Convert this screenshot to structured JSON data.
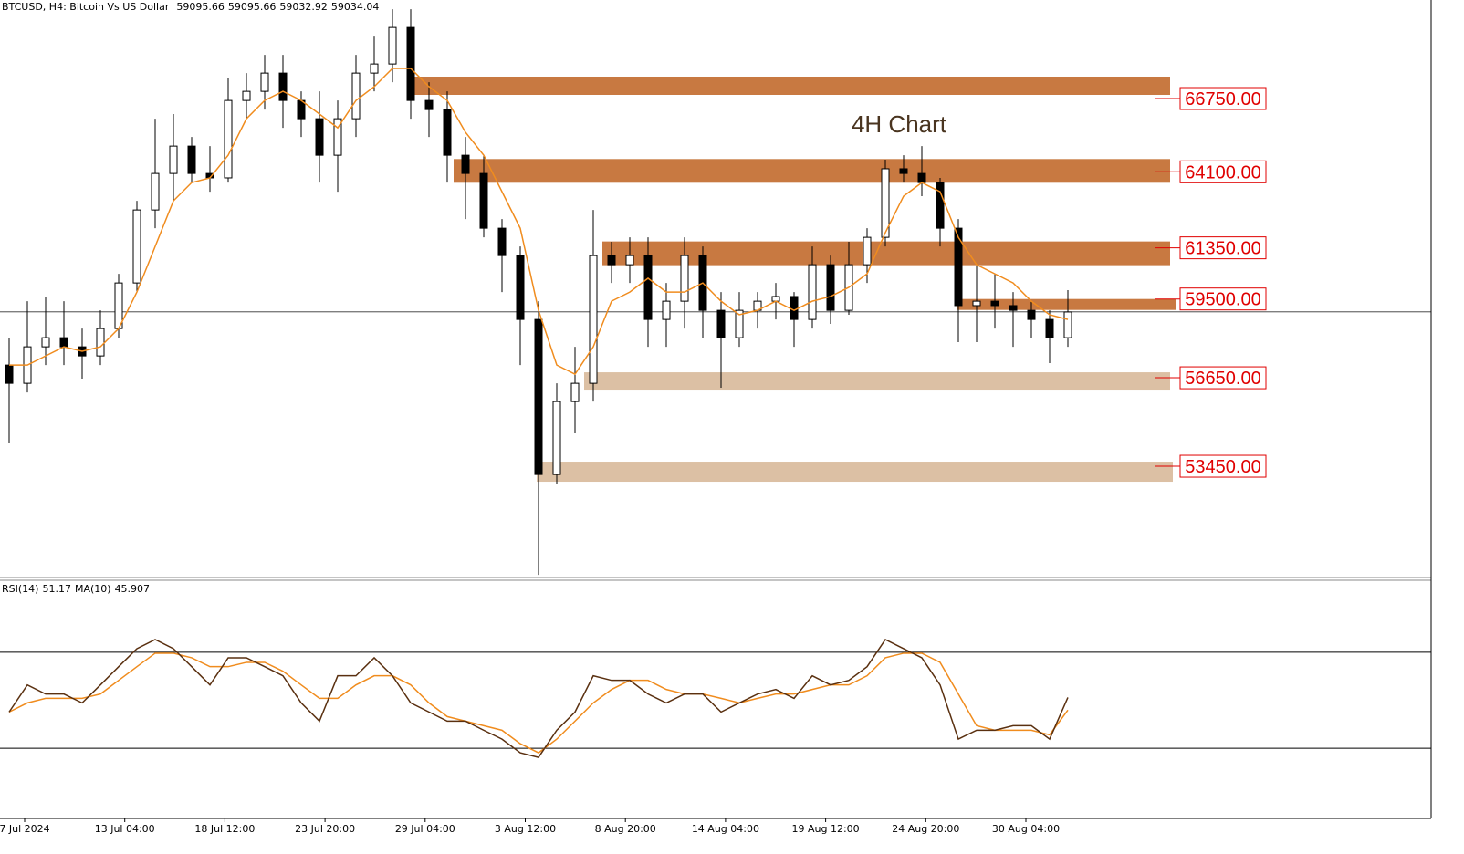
{
  "chart_data": {
    "type": "candlestick",
    "header": {
      "symbol": "BTCUSD, H4:  Bitcoin Vs US Dollar",
      "ohlc": [
        59095.66,
        59095.66,
        59032.92,
        59034.04
      ]
    },
    "annotation": "4H Chart",
    "ylim": [
      49425,
      70314
    ],
    "open": [
      57110,
      56450,
      57770,
      58100,
      57770,
      57440,
      58430,
      60080,
      62720,
      64040,
      65030,
      64040,
      63880,
      66680,
      67010,
      67670,
      66680,
      66020,
      64700,
      66020,
      67670,
      68000,
      69320,
      66680,
      66350,
      64700,
      64040,
      62060,
      61070,
      58760,
      53150,
      55790,
      56450,
      61070,
      60740,
      61070,
      58760,
      59420,
      61070,
      59090,
      58100,
      59090,
      59420,
      59590,
      58760,
      60740,
      59090,
      60740,
      61730,
      64210,
      64040,
      63710,
      62060,
      59260,
      59420,
      59260,
      59090,
      58760,
      58100
    ],
    "high": [
      58100,
      59420,
      59590,
      59420,
      58430,
      59090,
      60410,
      63050,
      66020,
      66190,
      65360,
      65030,
      67510,
      67670,
      68330,
      68330,
      67010,
      67010,
      66680,
      68330,
      68990,
      69980,
      69980,
      67340,
      67010,
      65360,
      64700,
      62390,
      61400,
      59420,
      56450,
      57770,
      62720,
      61570,
      61730,
      61730,
      60080,
      61730,
      61400,
      59750,
      59750,
      59750,
      60080,
      59750,
      61400,
      61070,
      61570,
      62060,
      64540,
      64700,
      65030,
      63880,
      62390,
      60740,
      60410,
      59750,
      59420,
      59090,
      59820
    ],
    "low": [
      54310,
      56120,
      57110,
      57110,
      56620,
      57110,
      58100,
      59750,
      62060,
      63050,
      63710,
      63380,
      63710,
      66020,
      66350,
      65690,
      65360,
      63710,
      63380,
      65360,
      67010,
      67340,
      66020,
      65360,
      63710,
      62390,
      61730,
      59750,
      57110,
      49520,
      52820,
      54640,
      55790,
      60080,
      60080,
      57770,
      57770,
      58430,
      58100,
      56290,
      57770,
      58430,
      58760,
      57770,
      58430,
      58600,
      58930,
      60080,
      61400,
      63710,
      63220,
      61400,
      57940,
      57940,
      58430,
      57770,
      58100,
      57180,
      57770
    ],
    "close": [
      56450,
      57770,
      58100,
      57770,
      57440,
      58430,
      60080,
      62720,
      64040,
      65030,
      64040,
      63880,
      66680,
      67010,
      67670,
      66680,
      66020,
      64700,
      66020,
      67670,
      68000,
      69320,
      66680,
      66350,
      64700,
      64040,
      62060,
      61070,
      58760,
      53150,
      55790,
      56450,
      61070,
      60740,
      61070,
      58760,
      59420,
      61070,
      59090,
      58100,
      59090,
      59420,
      59590,
      58760,
      60740,
      59090,
      60740,
      61730,
      64210,
      64040,
      63710,
      62060,
      59260,
      59420,
      59260,
      59090,
      58760,
      58100,
      59030
    ],
    "ma": {
      "color": "#f08c1e",
      "values": [
        57110,
        57110,
        57440,
        57770,
        57610,
        57770,
        58430,
        59750,
        61400,
        63050,
        63710,
        63880,
        64700,
        66020,
        66680,
        67010,
        66680,
        66190,
        65690,
        66680,
        67180,
        67840,
        67840,
        67180,
        66680,
        65530,
        64700,
        63380,
        62060,
        59090,
        57110,
        56780,
        57770,
        59420,
        59750,
        60250,
        59750,
        59750,
        60080,
        59420,
        58930,
        59090,
        59420,
        59090,
        59420,
        59590,
        59920,
        60410,
        61900,
        63220,
        63710,
        63380,
        61730,
        60740,
        60410,
        60080,
        59420,
        58930,
        58760
      ]
    },
    "zones": [
      {
        "level": {
          "value": 66750,
          "label": "66750.00"
        },
        "top": 67542,
        "bottom": 66882,
        "color": "#c87941"
      },
      {
        "level": {
          "value": 64100,
          "label": "64100.00"
        },
        "top": 64562,
        "bottom": 63704,
        "color": "#c87941"
      },
      {
        "level": {
          "value": 61350,
          "label": "61350.00"
        },
        "top": 61581,
        "bottom": 60723,
        "color": "#c87941"
      },
      {
        "level": {
          "value": 59500,
          "label": "59500.00"
        },
        "top": 59500,
        "bottom": 59104,
        "color": "#c87941"
      },
      {
        "level": {
          "value": 56650,
          "label": "56650.00"
        },
        "top": 56848,
        "bottom": 56221,
        "color": "#dcc0a4"
      },
      {
        "level": {
          "value": 53450,
          "label": "53450.00"
        },
        "top": 53615,
        "bottom": 52889,
        "color": "#dcc0a4"
      }
    ],
    "rsi": {
      "name": "RSI(14)",
      "value": 51.17,
      "ma_name": "MA(10)",
      "ma_value": 45.907,
      "ylim": [
        0,
        100
      ],
      "levels": [
        30,
        70
      ],
      "color": "#5a3010",
      "ma_color": "#f08c1e",
      "values": [
        45.1,
        56.4,
        52.6,
        52.6,
        48.9,
        56.4,
        64.0,
        71.5,
        75.3,
        71.5,
        64.0,
        56.4,
        67.7,
        67.7,
        64.0,
        60.2,
        48.9,
        41.3,
        60.2,
        60.2,
        67.7,
        60.2,
        48.9,
        45.1,
        41.3,
        41.3,
        37.5,
        33.8,
        28.1,
        26.2,
        37.5,
        45.1,
        60.2,
        58.3,
        58.3,
        52.6,
        48.9,
        52.6,
        52.6,
        45.1,
        48.9,
        52.6,
        54.5,
        50.8,
        60.2,
        56.4,
        58.3,
        64.0,
        75.3,
        71.5,
        67.7,
        56.4,
        33.8,
        37.5,
        37.5,
        39.4,
        39.4,
        33.8,
        51.17
      ],
      "ma_values": [
        45.1,
        48.9,
        50.8,
        50.8,
        50.8,
        52.6,
        58.3,
        64.0,
        69.6,
        69.6,
        67.7,
        64.0,
        64.0,
        65.8,
        65.8,
        62.1,
        56.4,
        50.8,
        50.8,
        56.4,
        60.2,
        60.2,
        56.4,
        48.9,
        43.2,
        41.3,
        39.4,
        37.5,
        31.9,
        28.1,
        33.8,
        41.3,
        48.9,
        54.5,
        58.3,
        58.3,
        54.5,
        52.6,
        52.6,
        50.8,
        48.9,
        50.8,
        52.6,
        52.6,
        54.5,
        56.4,
        56.4,
        60.2,
        67.7,
        69.6,
        69.6,
        65.8,
        52.6,
        39.4,
        37.5,
        37.5,
        37.5,
        35.6,
        45.907
      ]
    },
    "x_labels": [
      "7 Jul 2024",
      "13 Jul 04:00",
      "18 Jul 12:00",
      "23 Jul 20:00",
      "29 Jul 04:00",
      "3 Aug 12:00",
      "8 Aug 20:00",
      "14 Aug 04:00",
      "19 Aug 12:00",
      "24 Aug 20:00",
      "30 Aug 04:00"
    ]
  }
}
